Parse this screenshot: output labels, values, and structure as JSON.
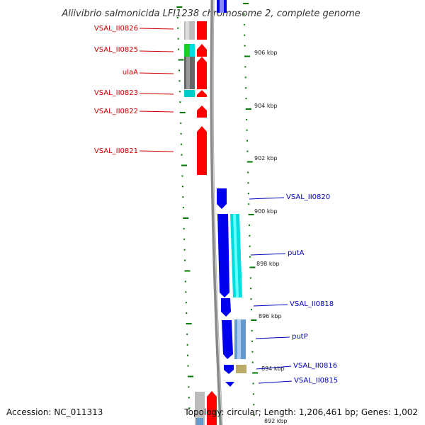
{
  "title": "Aliivibrio salmonicida LFI1238 chromosome 2, complete genome",
  "footer": {
    "accession": "Accession: NC_011313",
    "stats": "Topology: circular; Length: 1,206,461 bp; Genes: 1,002"
  },
  "colors": {
    "forward_cds": "#ff0000",
    "reverse_cds": "#0000ee",
    "cog_cyan": "#00dddd",
    "cog_gray": "#888888",
    "cog_green": "#22cc22",
    "cog_lightgray": "#bbbbbb",
    "cog_steel": "#6699cc",
    "cog_olive": "#bbaa66",
    "backbone": "#888888",
    "tick": "#007700"
  },
  "kbp_labels": [
    "906 kbp",
    "904 kbp",
    "902 kbp",
    "900 kbp",
    "898 kbp",
    "896 kbp",
    "894 kbp",
    "892 kbp"
  ],
  "forward_genes": [
    "VSAL_II0826",
    "VSAL_II0825",
    "ulaA",
    "VSAL_II0823",
    "VSAL_II0822",
    "VSAL_II0821"
  ],
  "reverse_genes": [
    "VSAL_II0820",
    "putA",
    "VSAL_II0818",
    "putP",
    "VSAL_II0816",
    "VSAL_II0815"
  ]
}
